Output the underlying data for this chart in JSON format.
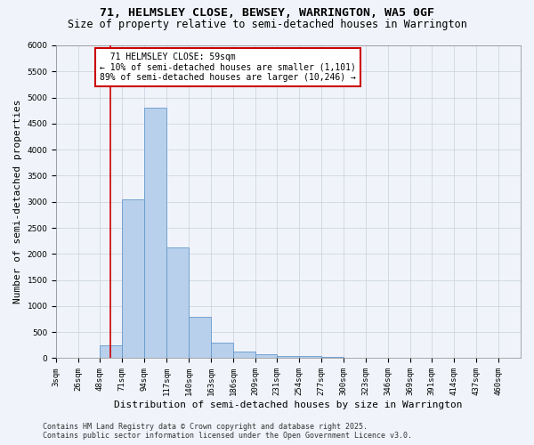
{
  "title": "71, HELMSLEY CLOSE, BEWSEY, WARRINGTON, WA5 0GF",
  "subtitle": "Size of property relative to semi-detached houses in Warrington",
  "xlabel": "Distribution of semi-detached houses by size in Warrington",
  "ylabel": "Number of semi-detached properties",
  "footer_line1": "Contains HM Land Registry data © Crown copyright and database right 2025.",
  "footer_line2": "Contains public sector information licensed under the Open Government Licence v3.0.",
  "bin_labels": [
    "3sqm",
    "26sqm",
    "48sqm",
    "71sqm",
    "94sqm",
    "117sqm",
    "140sqm",
    "163sqm",
    "186sqm",
    "209sqm",
    "231sqm",
    "254sqm",
    "277sqm",
    "300sqm",
    "323sqm",
    "346sqm",
    "369sqm",
    "391sqm",
    "414sqm",
    "437sqm",
    "460sqm"
  ],
  "bin_edges": [
    3,
    26,
    48,
    71,
    94,
    117,
    140,
    163,
    186,
    209,
    231,
    254,
    277,
    300,
    323,
    346,
    369,
    391,
    414,
    437,
    460,
    483
  ],
  "bar_values": [
    0,
    0,
    250,
    3050,
    4800,
    2130,
    800,
    300,
    130,
    75,
    50,
    40,
    30,
    10,
    5,
    3,
    2,
    1,
    1,
    0,
    0
  ],
  "bar_color": "#b8d0eb",
  "bar_edge_color": "#6699cc",
  "property_size": 59,
  "property_label": "71 HELMSLEY CLOSE: 59sqm",
  "smaller_pct": "10%",
  "smaller_count": "1,101",
  "larger_pct": "89%",
  "larger_count": "10,246",
  "red_line_color": "#cc0000",
  "annotation_box_color": "#cc0000",
  "ylim": [
    0,
    6000
  ],
  "yticks": [
    0,
    500,
    1000,
    1500,
    2000,
    2500,
    3000,
    3500,
    4000,
    4500,
    5000,
    5500,
    6000
  ],
  "background_color": "#f0f4fa",
  "plot_bg_color": "#f0f4fa",
  "grid_color": "#c8d0dc",
  "title_fontsize": 9.5,
  "subtitle_fontsize": 8.5,
  "axis_label_fontsize": 8,
  "tick_fontsize": 6.5,
  "footer_fontsize": 6,
  "annot_fontsize": 7
}
